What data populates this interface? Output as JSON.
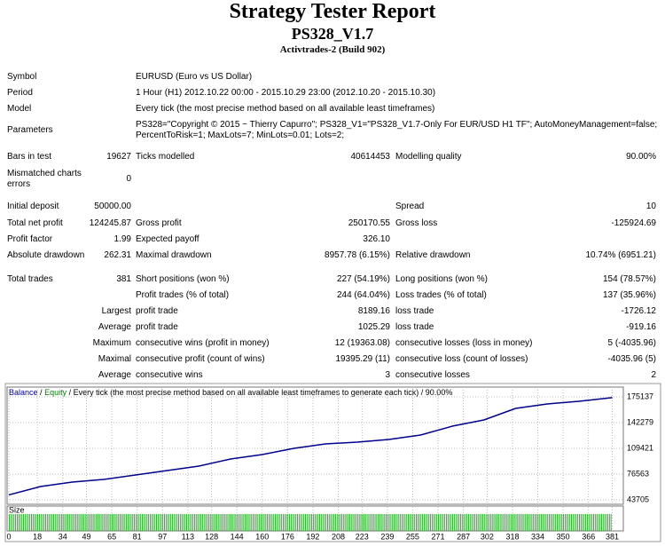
{
  "header": {
    "title": "Strategy Tester Report",
    "subtitle": "PS328_V1.7",
    "broker": "Activtrades-2 (Build 902)"
  },
  "table": {
    "rows": [
      [
        "Symbol",
        "EURUSD (Euro vs US Dollar)"
      ],
      [
        "Period",
        "1 Hour (H1) 2012.10.22 00:00 - 2015.10.29 23:00 (2012.10.20 - 2015.10.30)"
      ],
      [
        "Model",
        "Every tick (the most precise method based on all available least timeframes)"
      ],
      [
        "Parameters",
        "PS328=\"Copyright © 2015 ~ Thierry Capurro\"; PS328_V1=\"PS328_V1.7-Only For EUR/USD H1 TF\"; AutoMoneyManagement=false; PercentToRisk=1; MaxLots=7; MinLots=0.01; Lots=2;"
      ],
      [
        "Bars in test",
        "19627",
        "Ticks modelled",
        "40614453",
        "Modelling quality",
        "90.00%"
      ],
      [
        "Mismatched charts errors",
        "0"
      ],
      [
        "Initial deposit",
        "50000.00",
        "Spread",
        "10"
      ],
      [
        "Total net profit",
        "124245.87",
        "Gross profit",
        "250170.55",
        "Gross loss",
        "-125924.69"
      ],
      [
        "Profit factor",
        "1.99",
        "Expected payoff",
        "326.10"
      ],
      [
        "Absolute drawdown",
        "262.31",
        "Maximal drawdown",
        "8957.78 (6.15%)",
        "Relative drawdown",
        "10.74% (6951.21)"
      ],
      [
        "Total trades",
        "381",
        "Short positions (won %)",
        "227 (54.19%)",
        "Long positions (won %)",
        "154 (78.57%)"
      ],
      [
        "Profit trades (% of total)",
        "244 (64.04%)",
        "Loss trades (% of total)",
        "137 (35.96%)"
      ],
      [
        "Largest",
        "profit trade",
        "8189.16",
        "loss trade",
        "-1726.12"
      ],
      [
        "Average",
        "profit trade",
        "1025.29",
        "loss trade",
        "-919.16"
      ],
      [
        "Maximum",
        "consecutive wins (profit in money)",
        "12 (19363.08)",
        "consecutive losses (loss in money)",
        "5 (-4035.96)"
      ],
      [
        "Maximal",
        "consecutive profit (count of wins)",
        "19395.29 (11)",
        "consecutive loss (count of losses)",
        "-4035.96 (5)"
      ],
      [
        "Average",
        "consecutive wins",
        "3",
        "consecutive losses",
        "2"
      ]
    ]
  },
  "chart_data": {
    "type": "line",
    "legend_parts": [
      "/",
      "Equity",
      "/ Every tick (the most precise method based on all available least timeframes to generate each tick) / 90.00%"
    ],
    "equity_color": "#008000",
    "size_label": "Size",
    "x": [
      0,
      20,
      40,
      60,
      80,
      100,
      120,
      140,
      160,
      180,
      200,
      220,
      240,
      260,
      280,
      300,
      320,
      340,
      360,
      381
    ],
    "series": [
      {
        "name": "Balance",
        "color": "#00008b",
        "values": [
          50000,
          60700,
          66400,
          69800,
          75400,
          81100,
          86800,
          95800,
          101500,
          109400,
          115100,
          117400,
          120700,
          126400,
          137700,
          145700,
          160400,
          166100,
          169500,
          174200
        ]
      }
    ],
    "size": {
      "color": "#22aa22",
      "ylim": [
        0,
        2
      ],
      "values": [
        2,
        2,
        2,
        2,
        2,
        2,
        2,
        2,
        2,
        2,
        2,
        2,
        2,
        2,
        2,
        2,
        2,
        2,
        2,
        2,
        2,
        2,
        2,
        2,
        2,
        2,
        2,
        2,
        2,
        2,
        2,
        2,
        2,
        2,
        2,
        2,
        2,
        2,
        2,
        2,
        2,
        2,
        2,
        2,
        2,
        2,
        2,
        2,
        2,
        2,
        2,
        2,
        2,
        2,
        2,
        2,
        2,
        2,
        2,
        2,
        2,
        2,
        2,
        2,
        2,
        2,
        2,
        2,
        2,
        2,
        2,
        2,
        2,
        2,
        2,
        2,
        2,
        2,
        2,
        2,
        2,
        2,
        2,
        2,
        2,
        2,
        2,
        2,
        2,
        2,
        2,
        2,
        2,
        2,
        2,
        2,
        2,
        2,
        2,
        2,
        2,
        2,
        2,
        2,
        2,
        2,
        2,
        2,
        2,
        2,
        2,
        2,
        2,
        2,
        2,
        2,
        2,
        2,
        2,
        2,
        2,
        2,
        2,
        2,
        2,
        2,
        2,
        2,
        2,
        2,
        2,
        2,
        2,
        2,
        2,
        2,
        2,
        2,
        2,
        2,
        2,
        2,
        2,
        2,
        2,
        2,
        2,
        2,
        2,
        2,
        2,
        2,
        2,
        2,
        2,
        2,
        2,
        2,
        2,
        2,
        2,
        2,
        2,
        2,
        2,
        2,
        2,
        2,
        2,
        2,
        2,
        2,
        2,
        2,
        2,
        2,
        2,
        2,
        2,
        2,
        2,
        2,
        2,
        2,
        2,
        2,
        2,
        2,
        2,
        2,
        2,
        2,
        2,
        2,
        2,
        2,
        2,
        2,
        2,
        2,
        2,
        2,
        2,
        2,
        2,
        2,
        2,
        2,
        2,
        2,
        2,
        2,
        2,
        2,
        2,
        2,
        2,
        2,
        2,
        2,
        2,
        2,
        2,
        2,
        2,
        2,
        2,
        2,
        2,
        2,
        2,
        2,
        2,
        2,
        2,
        2,
        2,
        2,
        2,
        2,
        2,
        2,
        2,
        2,
        2,
        2,
        2,
        2,
        2,
        2,
        2,
        2,
        2,
        2,
        2,
        2,
        2,
        2,
        2,
        2,
        2,
        2,
        2,
        2,
        2,
        2,
        2,
        2,
        2,
        2,
        2,
        2,
        2,
        2,
        2,
        2,
        2,
        2,
        2,
        2,
        2,
        2,
        2,
        2,
        2,
        2,
        2,
        2,
        2,
        2,
        2,
        2,
        2,
        2,
        2,
        2,
        2,
        2,
        2,
        2,
        2,
        2,
        2,
        2,
        2,
        2,
        2,
        2,
        2,
        2,
        2,
        2,
        2,
        2,
        2,
        2,
        2,
        2,
        2,
        2,
        2,
        2,
        2,
        2,
        2,
        2,
        2,
        2,
        2,
        2,
        2,
        2,
        2,
        2,
        2,
        2,
        2,
        2,
        2,
        2,
        2,
        2,
        2,
        2,
        2,
        2,
        2,
        2,
        2,
        2,
        2,
        2,
        2,
        2,
        2,
        2,
        2,
        2,
        2,
        2,
        2,
        2,
        2,
        2,
        2,
        2,
        2,
        2,
        2,
        2,
        2,
        2,
        2,
        2,
        2,
        2,
        2,
        2,
        2,
        2,
        2
      ]
    },
    "xlim": [
      0,
      388
    ],
    "ylim": [
      38040,
      187600
    ],
    "xticks": [
      0,
      18,
      34,
      49,
      65,
      81,
      97,
      113,
      128,
      144,
      160,
      176,
      192,
      208,
      223,
      239,
      255,
      271,
      287,
      302,
      318,
      334,
      350,
      366,
      381
    ],
    "yticks": [
      175137,
      142279,
      109421,
      76563,
      43705
    ],
    "grid": true
  }
}
